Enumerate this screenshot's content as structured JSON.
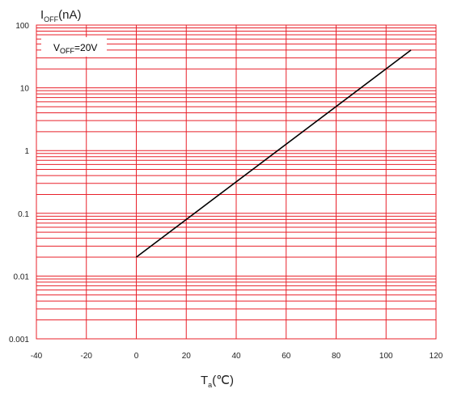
{
  "chart_data": {
    "type": "line",
    "y_scale": "log",
    "xlim": [
      -40,
      120
    ],
    "ylim": [
      0.001,
      100
    ],
    "x_ticks": [
      "-40",
      "-20",
      "0",
      "20",
      "40",
      "60",
      "80",
      "100",
      "120"
    ],
    "y_ticks": [
      "0.001",
      "0.01",
      "0.1",
      "1",
      "10",
      "100"
    ],
    "ylabel": {
      "main": "I",
      "sub": "OFF",
      "rest": "(nA)"
    },
    "xlabel": {
      "main": "T",
      "sub": "a",
      "rest": "(℃)"
    },
    "annotation": {
      "main": "V",
      "sub": "OFF",
      "rest": "=20V"
    },
    "grid": true,
    "grid_color": "#e8202a",
    "line_color": "#000000",
    "series": [
      {
        "x": [
          0,
          110
        ],
        "y": [
          0.02,
          40
        ]
      }
    ]
  }
}
